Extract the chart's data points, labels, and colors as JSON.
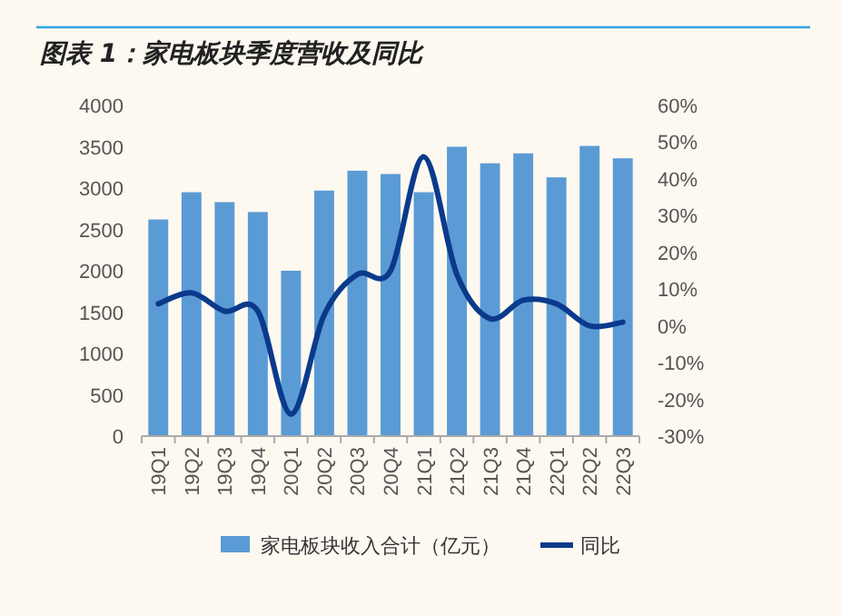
{
  "chart_data": {
    "type": "bar",
    "title": "图表 1：家电板块季度营收及同比",
    "categories": [
      "19Q1",
      "19Q2",
      "19Q3",
      "19Q4",
      "20Q1",
      "20Q2",
      "20Q3",
      "20Q4",
      "21Q1",
      "21Q2",
      "21Q3",
      "21Q4",
      "22Q1",
      "22Q2",
      "22Q3"
    ],
    "series": [
      {
        "name": "家电板块收入合计（亿元）",
        "color": "#5b9bd5",
        "values": [
          2620,
          2950,
          2830,
          2710,
          2000,
          2970,
          3210,
          3170,
          2950,
          3500,
          3300,
          3420,
          3130,
          3510,
          3360
        ]
      },
      {
        "name": "同比",
        "type": "line",
        "axis": "y2",
        "color": "#0b3a8c",
        "values": [
          6,
          9,
          4,
          4,
          -24,
          3,
          14,
          15,
          46,
          14,
          2,
          7,
          6,
          0,
          1
        ]
      }
    ],
    "ylim": [
      0,
      4000
    ],
    "yticks": [
      0,
      500,
      1000,
      1500,
      2000,
      2500,
      3000,
      3500,
      4000
    ],
    "y2lim": [
      -30,
      60
    ],
    "y2ticks": [
      {
        "value": -30,
        "label": "-30%"
      },
      {
        "value": -20,
        "label": "-20%"
      },
      {
        "value": -10,
        "label": "-10%"
      },
      {
        "value": 0,
        "label": "0%"
      },
      {
        "value": 10,
        "label": "10%"
      },
      {
        "value": 20,
        "label": "20%"
      },
      {
        "value": 30,
        "label": "30%"
      },
      {
        "value": 40,
        "label": "40%"
      },
      {
        "value": 50,
        "label": "50%"
      },
      {
        "value": 60,
        "label": "60%"
      }
    ],
    "legend": "bottom",
    "grid": false
  }
}
